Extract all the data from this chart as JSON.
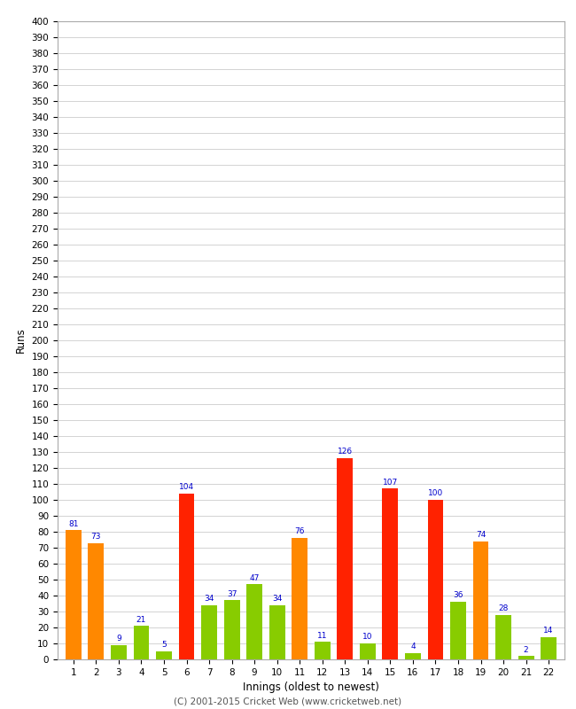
{
  "xlabel": "Innings (oldest to newest)",
  "ylabel": "Runs",
  "footer": "(C) 2001-2015 Cricket Web (www.cricketweb.net)",
  "innings": [
    1,
    2,
    3,
    4,
    5,
    6,
    7,
    8,
    9,
    10,
    11,
    12,
    13,
    14,
    15,
    16,
    17,
    18,
    19,
    20,
    21,
    22
  ],
  "values": [
    81,
    73,
    9,
    21,
    5,
    104,
    34,
    37,
    47,
    34,
    76,
    11,
    126,
    10,
    107,
    4,
    100,
    36,
    74,
    28,
    2,
    14
  ],
  "colors": [
    "#ff8800",
    "#ff8800",
    "#88cc00",
    "#88cc00",
    "#88cc00",
    "#ff2200",
    "#88cc00",
    "#88cc00",
    "#88cc00",
    "#88cc00",
    "#ff8800",
    "#88cc00",
    "#ff2200",
    "#88cc00",
    "#ff2200",
    "#88cc00",
    "#ff2200",
    "#88cc00",
    "#ff8800",
    "#88cc00",
    "#88cc00",
    "#88cc00"
  ],
  "ylim": [
    0,
    400
  ],
  "yticks": [
    0,
    10,
    20,
    30,
    40,
    50,
    60,
    70,
    80,
    90,
    100,
    110,
    120,
    130,
    140,
    150,
    160,
    170,
    180,
    190,
    200,
    210,
    220,
    230,
    240,
    250,
    260,
    270,
    280,
    290,
    300,
    310,
    320,
    330,
    340,
    350,
    360,
    370,
    380,
    390,
    400
  ],
  "bg_color": "#ffffff",
  "grid_color": "#cccccc",
  "label_color": "#0000cc",
  "label_fontsize": 6.5,
  "bar_width": 0.7,
  "axis_fontsize": 7.5,
  "footer_color": "#555555"
}
